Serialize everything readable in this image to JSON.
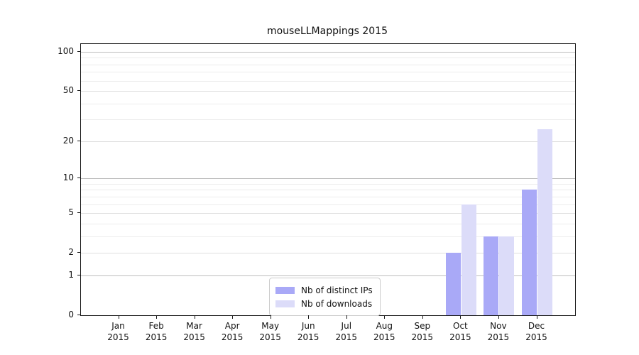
{
  "chart_data": {
    "type": "bar",
    "title": "mouseLLMappings 2015",
    "x_tick_months": [
      "Jan",
      "Feb",
      "Mar",
      "Apr",
      "May",
      "Jun",
      "Jul",
      "Aug",
      "Sep",
      "Oct",
      "Nov",
      "Dec"
    ],
    "x_tick_year": "2015",
    "series": [
      {
        "name": "Nb of distinct IPs",
        "color": "#a9a9f7",
        "values": [
          0,
          0,
          0,
          0,
          0,
          0,
          0,
          0,
          0,
          2,
          3,
          8
        ]
      },
      {
        "name": "Nb of downloads",
        "color": "#dcdcf9",
        "values": [
          0,
          0,
          0,
          0,
          0,
          0,
          0,
          0,
          0,
          6,
          3,
          25
        ]
      }
    ],
    "yscale": "log10(value+1)",
    "y_tick_values": [
      0,
      1,
      2,
      5,
      10,
      20,
      50,
      100
    ],
    "y_minor_grid_values": [
      3,
      4,
      6,
      7,
      8,
      9,
      30,
      40,
      60,
      70,
      80,
      90
    ],
    "ylim": [
      0,
      115
    ],
    "grid": "horizontal",
    "legend_position": "lower center",
    "colors": {
      "decade_gridline": "#bcbcbc",
      "labeled_gridline": "#dedede",
      "minor_gridline": "#ececec",
      "spine": "#1a1a1a"
    }
  }
}
